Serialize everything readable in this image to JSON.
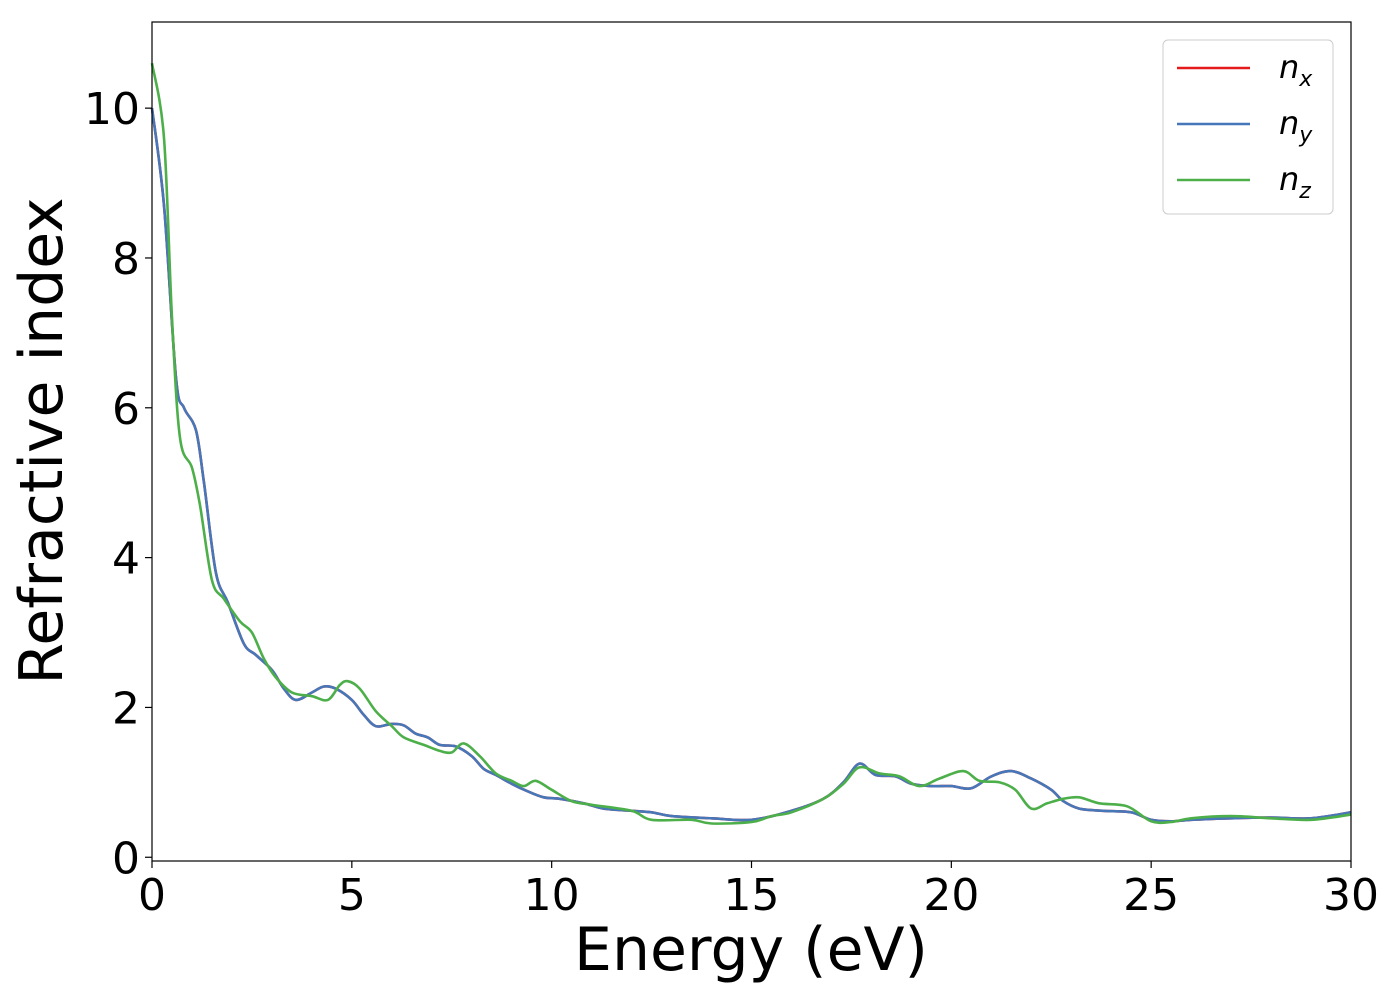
{
  "chart_data": {
    "type": "line",
    "title": "",
    "xlabel": "Energy (eV)",
    "ylabel": "Refractive index",
    "xlim": [
      0,
      30
    ],
    "ylim": [
      -0.05,
      11.15
    ],
    "xticks": [
      0,
      5,
      10,
      15,
      20,
      25,
      30
    ],
    "yticks": [
      0,
      2,
      4,
      6,
      8,
      10
    ],
    "grid": false,
    "legend_position": "top-right",
    "series": [
      {
        "name": "n_x",
        "label_main": "n",
        "label_sub": "x",
        "color": "#e41a1c",
        "x": [
          0,
          0.3,
          0.6,
          0.8,
          1.1,
          1.3,
          1.6,
          1.9,
          2.3,
          2.6,
          3.0,
          3.3,
          3.6,
          4.0,
          4.3,
          4.6,
          5.0,
          5.3,
          5.6,
          6.0,
          6.3,
          6.6,
          6.9,
          7.2,
          7.6,
          8.0,
          8.3,
          8.6,
          9.0,
          9.4,
          9.8,
          10.2,
          10.8,
          11.3,
          12.0,
          12.5,
          13.0,
          14.0,
          15.0,
          16.0,
          16.8,
          17.3,
          17.7,
          18.1,
          18.6,
          19.0,
          19.5,
          20.0,
          20.5,
          21.0,
          21.5,
          22.0,
          22.5,
          22.8,
          23.2,
          23.8,
          24.5,
          25.0,
          25.5,
          26.0,
          27.0,
          28.0,
          29.0,
          30.0
        ],
        "y": [
          10.0,
          8.7,
          6.4,
          6.0,
          5.7,
          5.0,
          3.8,
          3.4,
          2.85,
          2.7,
          2.5,
          2.25,
          2.1,
          2.2,
          2.28,
          2.25,
          2.1,
          1.9,
          1.75,
          1.78,
          1.76,
          1.65,
          1.6,
          1.5,
          1.48,
          1.35,
          1.18,
          1.1,
          0.98,
          0.88,
          0.8,
          0.78,
          0.72,
          0.65,
          0.62,
          0.6,
          0.55,
          0.52,
          0.5,
          0.62,
          0.78,
          1.0,
          1.25,
          1.1,
          1.08,
          0.98,
          0.95,
          0.95,
          0.92,
          1.08,
          1.15,
          1.05,
          0.9,
          0.75,
          0.65,
          0.62,
          0.6,
          0.5,
          0.48,
          0.5,
          0.52,
          0.53,
          0.52,
          0.6
        ]
      },
      {
        "name": "n_y",
        "label_main": "n",
        "label_sub": "y",
        "color": "#4677b8",
        "x": [
          0,
          0.3,
          0.6,
          0.8,
          1.1,
          1.3,
          1.6,
          1.9,
          2.3,
          2.6,
          3.0,
          3.3,
          3.6,
          4.0,
          4.3,
          4.6,
          5.0,
          5.3,
          5.6,
          6.0,
          6.3,
          6.6,
          6.9,
          7.2,
          7.6,
          8.0,
          8.3,
          8.6,
          9.0,
          9.4,
          9.8,
          10.2,
          10.8,
          11.3,
          12.0,
          12.5,
          13.0,
          14.0,
          15.0,
          16.0,
          16.8,
          17.3,
          17.7,
          18.1,
          18.6,
          19.0,
          19.5,
          20.0,
          20.5,
          21.0,
          21.5,
          22.0,
          22.5,
          22.8,
          23.2,
          23.8,
          24.5,
          25.0,
          25.5,
          26.0,
          27.0,
          28.0,
          29.0,
          30.0
        ],
        "y": [
          10.0,
          8.7,
          6.4,
          6.0,
          5.7,
          5.0,
          3.8,
          3.4,
          2.85,
          2.7,
          2.5,
          2.25,
          2.1,
          2.2,
          2.28,
          2.25,
          2.1,
          1.9,
          1.75,
          1.78,
          1.76,
          1.65,
          1.6,
          1.5,
          1.48,
          1.35,
          1.18,
          1.1,
          0.98,
          0.88,
          0.8,
          0.78,
          0.72,
          0.65,
          0.62,
          0.6,
          0.55,
          0.52,
          0.5,
          0.62,
          0.78,
          1.0,
          1.25,
          1.1,
          1.08,
          0.98,
          0.95,
          0.95,
          0.92,
          1.08,
          1.15,
          1.05,
          0.9,
          0.75,
          0.65,
          0.62,
          0.6,
          0.5,
          0.48,
          0.5,
          0.52,
          0.53,
          0.52,
          0.6
        ]
      },
      {
        "name": "n_z",
        "label_main": "n",
        "label_sub": "z",
        "color": "#4daf4a",
        "x": [
          0,
          0.3,
          0.5,
          0.7,
          1.0,
          1.2,
          1.5,
          1.8,
          2.2,
          2.5,
          2.8,
          3.1,
          3.5,
          4.0,
          4.4,
          4.7,
          4.9,
          5.2,
          5.6,
          6.0,
          6.3,
          6.8,
          7.2,
          7.5,
          7.8,
          8.2,
          8.6,
          9.0,
          9.3,
          9.6,
          10.0,
          10.5,
          11.0,
          12.0,
          12.5,
          13.5,
          14.0,
          15.0,
          15.5,
          16.0,
          16.8,
          17.3,
          17.7,
          18.2,
          18.7,
          19.2,
          19.7,
          20.3,
          20.7,
          21.2,
          21.6,
          22.0,
          22.4,
          22.8,
          23.2,
          23.7,
          24.4,
          25.0,
          25.5,
          26.0,
          27.0,
          28.0,
          29.0,
          30.0
        ],
        "y": [
          10.6,
          9.6,
          7.2,
          5.6,
          5.2,
          4.7,
          3.7,
          3.45,
          3.15,
          3.0,
          2.65,
          2.4,
          2.2,
          2.15,
          2.1,
          2.3,
          2.35,
          2.25,
          1.95,
          1.75,
          1.6,
          1.5,
          1.42,
          1.4,
          1.52,
          1.35,
          1.12,
          1.02,
          0.95,
          1.02,
          0.9,
          0.75,
          0.7,
          0.62,
          0.5,
          0.5,
          0.45,
          0.47,
          0.55,
          0.6,
          0.78,
          0.98,
          1.2,
          1.12,
          1.08,
          0.95,
          1.05,
          1.15,
          1.02,
          1.0,
          0.9,
          0.65,
          0.72,
          0.78,
          0.8,
          0.72,
          0.68,
          0.48,
          0.47,
          0.52,
          0.55,
          0.52,
          0.5,
          0.57
        ]
      }
    ]
  }
}
